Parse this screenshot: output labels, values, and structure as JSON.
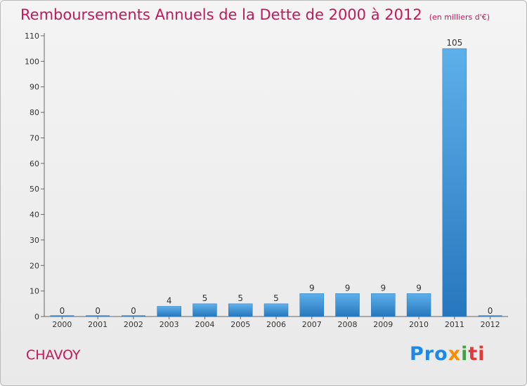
{
  "chart_data": {
    "type": "bar",
    "title": "Remboursements Annuels de la Dette de 2000 à 2012",
    "unit_note": "(en milliers d'€)",
    "categories": [
      "2000",
      "2001",
      "2002",
      "2003",
      "2004",
      "2005",
      "2006",
      "2007",
      "2008",
      "2009",
      "2010",
      "2011",
      "2012"
    ],
    "values": [
      0,
      0,
      0,
      4,
      5,
      5,
      5,
      9,
      9,
      9,
      9,
      105,
      0
    ],
    "ylim": [
      0,
      110
    ],
    "yticks": [
      0,
      10,
      20,
      30,
      40,
      50,
      60,
      70,
      80,
      90,
      100,
      110
    ],
    "grid": false,
    "bar_color": "#3f93d9"
  },
  "commune": "CHAVOY",
  "logo": {
    "parts": [
      "Pro",
      "x",
      "i",
      "ti"
    ]
  }
}
